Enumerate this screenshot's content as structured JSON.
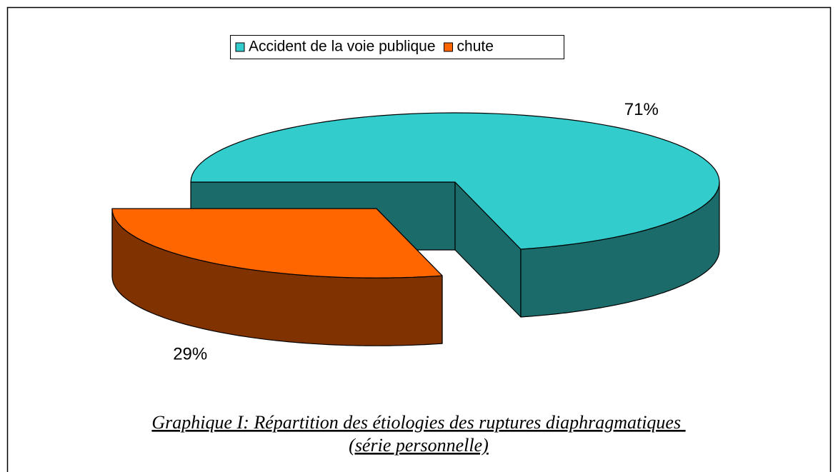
{
  "chart_data": {
    "type": "pie",
    "title": "Graphique I: Répartition des étiologies des ruptures diaphragmatiques ",
    "subtitle": "(série personnelle)",
    "categories": [
      "Accident de la voie publique",
      "chute"
    ],
    "values": [
      71,
      29
    ],
    "value_labels": [
      "71%",
      "29%"
    ],
    "colors": [
      "#33cccc",
      "#ff6600"
    ],
    "side_colors": [
      "#1b6b6b",
      "#803300"
    ],
    "legend": "top"
  }
}
